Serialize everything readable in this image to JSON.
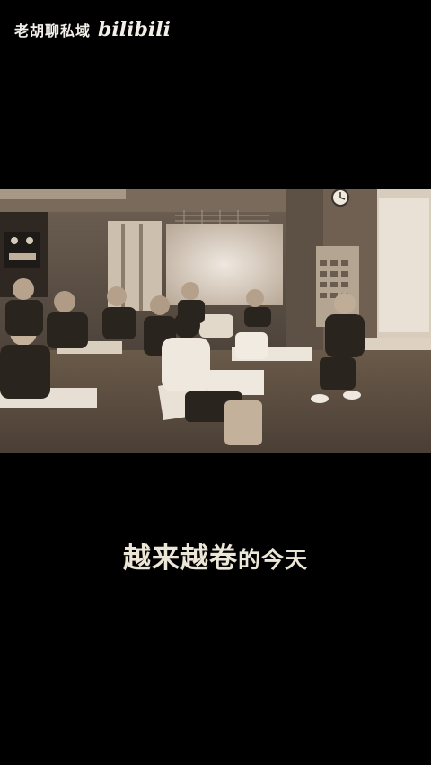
{
  "watermark": {
    "channel": "老胡聊私域",
    "brand": "bilibili"
  },
  "video": {
    "description_colors": {
      "tint": "#a38e75",
      "dark": "#2a241f",
      "light": "#f2ece3"
    }
  },
  "caption": {
    "part1": "越来越卷",
    "part2": "的今天"
  }
}
